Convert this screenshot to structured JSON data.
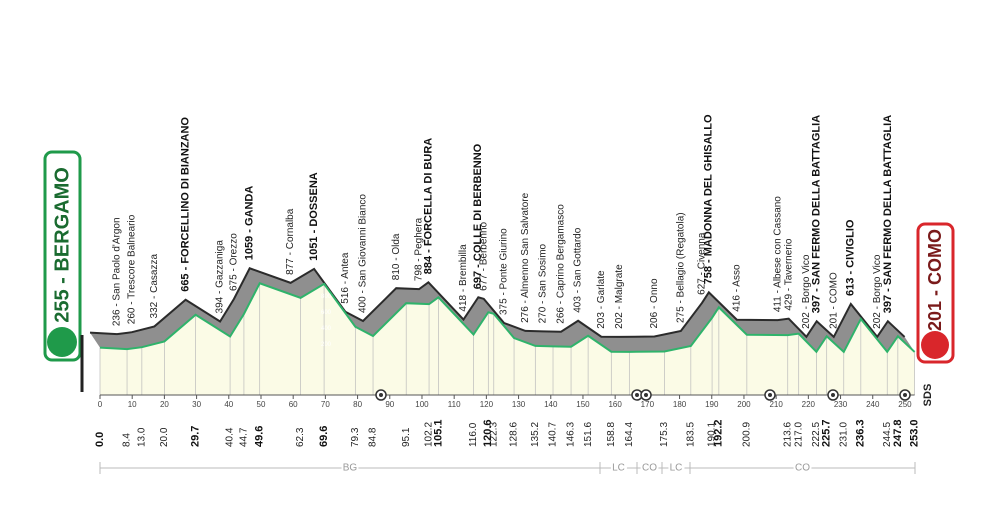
{
  "chart_data": {
    "type": "area",
    "x": [
      0,
      8.4,
      13.0,
      20.0,
      29.7,
      40.4,
      44.7,
      49.6,
      62.3,
      69.6,
      79.3,
      84.8,
      95.1,
      102.2,
      105.1,
      116.0,
      120.6,
      122.3,
      128.6,
      135.2,
      140.7,
      146.3,
      151.6,
      158.8,
      164.4,
      175.3,
      183.5,
      190.1,
      192.2,
      200.9,
      213.6,
      217.0,
      222.5,
      225.7,
      231.0,
      236.3,
      244.5,
      247.8,
      253.0
    ],
    "x_labels": [
      "0.0",
      "8.4",
      "13.0",
      "20.0",
      "29.7",
      "40.4",
      "44.7",
      "49.6",
      "62.3",
      "69.6",
      "79.3",
      "84.8",
      "95.1",
      "102.2",
      "105.1",
      "116.0",
      "120.6",
      "122.3",
      "128.6",
      "135.2",
      "140.7",
      "146.3",
      "151.6",
      "158.8",
      "164.4",
      "175.3",
      "183.5",
      "190.1",
      "192.2",
      "200.9",
      "213.6",
      "217.0",
      "222.5",
      "225.7",
      "231.0",
      "236.3",
      "244.5",
      "247.8",
      "253.0"
    ],
    "values": [
      255,
      236,
      260,
      332,
      665,
      394,
      675,
      1059,
      877,
      1051,
      516,
      400,
      810,
      798,
      884,
      418,
      697,
      677,
      375,
      276,
      270,
      266,
      403,
      203,
      202,
      206,
      275,
      627,
      758,
      416,
      411,
      429,
      202,
      397,
      201,
      613,
      202,
      397,
      201
    ],
    "value_labels": [
      "255 - BERGAMO",
      "236 - San Paolo d'Argon",
      "260 - Trescore Balneario",
      "332 - Casazza",
      "665 - FORCELLINO DI BIANZANO",
      "394 - Gazzaniga",
      "675 - Orezzo",
      "1059 - GANDA",
      "877 - Cornalba",
      "1051 - DOSSENA",
      "516 - Antea",
      "400 - San Giovanni Bianco",
      "810 - Olda",
      "798 - Peghera",
      "884 - FORCELLA DI BURA",
      "418 - Brembilla",
      "697 - COLLE DI BERBENNO",
      "677 - Berbenno",
      "375 - Ponte Giurino",
      "276 - Almenno San Salvatore",
      "270 - San Sosimo",
      "266 - Caprino Bergamasco",
      "403 - San Gottardo",
      "203 - Garlate",
      "202 - Malgrate",
      "206 - Onno",
      "275 - Bellagio (Regatola)",
      "627 - Civenna",
      "758 - MADONNA DEL GHISALLO",
      "416 - Asso",
      "411 - Albese con Cassano",
      "429 - Tavernerio",
      "202 - Borgo Vico",
      "397 - SAN FERMO DELLA BATTAGLIA",
      "201 - COMO",
      "613 - CIVIGLIO",
      "202 - Borgo Vico",
      "397 - SAN FERMO DELLA BATTAGLIA",
      "201 - COMO"
    ],
    "bold": [
      true,
      false,
      false,
      false,
      true,
      false,
      false,
      true,
      false,
      true,
      false,
      false,
      false,
      false,
      true,
      false,
      true,
      false,
      false,
      false,
      false,
      false,
      false,
      false,
      false,
      false,
      false,
      false,
      true,
      false,
      false,
      false,
      false,
      true,
      false,
      true,
      false,
      true,
      true
    ],
    "color": "#2fb36b",
    "xlim": [
      0,
      253
    ],
    "xticks": [
      0,
      10,
      20,
      30,
      40,
      50,
      60,
      70,
      80,
      90,
      100,
      110,
      120,
      130,
      140,
      150,
      160,
      170,
      180,
      190,
      200,
      210,
      220,
      230,
      240,
      250
    ],
    "ylim": [
      0,
      1200
    ],
    "yticks": [
      200,
      400,
      600,
      800
    ],
    "zones": [
      "BG",
      "LC",
      "CO",
      "LC",
      "CO"
    ],
    "logo": "SDS"
  }
}
